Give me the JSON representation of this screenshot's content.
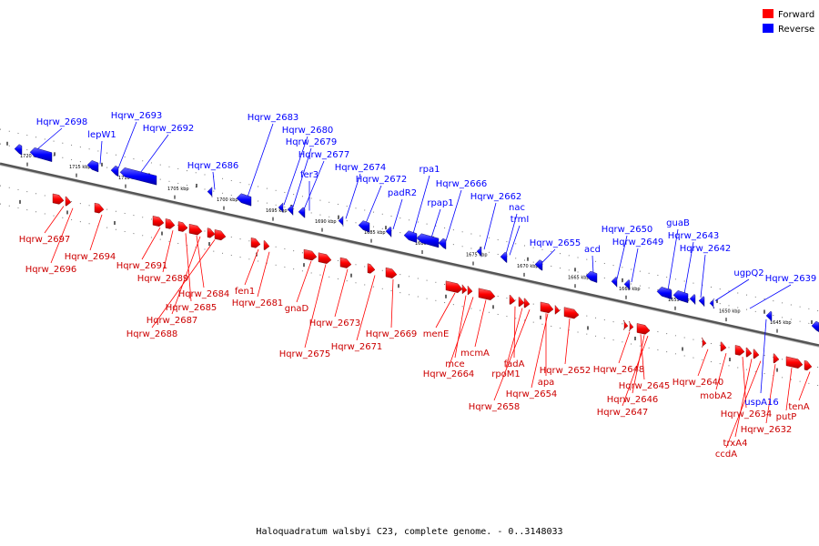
{
  "legend": [
    {
      "label": "Forward",
      "color": "#ff0000"
    },
    {
      "label": "Reverse",
      "color": "#0000ff"
    }
  ],
  "caption": "Haloquadratum walsbyi C23, complete genome. - 0..3148033",
  "ticks": [
    "1720 kbp",
    "1715 kbp",
    "1710 kbp",
    "1705 kbp",
    "1700 kbp",
    "1695 kbp",
    "1690 kbp",
    "1685 kbp",
    "1680 kbp",
    "1675 kbp",
    "1670 kbp",
    "1665 kbp",
    "1660 kbp",
    "1655 kbp",
    "1650 kbp",
    "1645 kbp"
  ],
  "reverse_genes": [
    "Hqrw_2698",
    "lepW1",
    "Hqrw_2693",
    "Hqrw_2692",
    "Hqrw_2686",
    "Hqrw_2683",
    "Hqrw_2680",
    "Hqrw_2679",
    "Hqrw_2677",
    "fer3",
    "Hqrw_2674",
    "Hqrw_2672",
    "padR2",
    "rpa1",
    "rpap1",
    "Hqrw_2666",
    "Hqrw_2662",
    "nac",
    "trmI",
    "Hqrw_2655",
    "acd",
    "Hqrw_2650",
    "Hqrw_2649",
    "guaB",
    "Hqrw_2643",
    "Hqrw_2642",
    "ugpQ2",
    "Hqrw_2639",
    "uspA16"
  ],
  "forward_genes": [
    "Hqrw_2697",
    "Hqrw_2696",
    "Hqrw_2694",
    "Hqrw_2691",
    "Hqrw_2689",
    "Hqrw_2684",
    "Hqrw_2685",
    "Hqrw_2687",
    "Hqrw_2688",
    "fen1",
    "Hqrw_2681",
    "gnaD",
    "Hqrw_2673",
    "Hqrw_2675",
    "Hqrw_2671",
    "Hqrw_2669",
    "menE",
    "mce",
    "mcmA",
    "Hqrw_2664",
    "fadA",
    "rpoM1",
    "apa",
    "Hqrw_2654",
    "Hqrw_2658",
    "Hqrw_2652",
    "Hqrw_2648",
    "Hqrw_2645",
    "Hqrw_2646",
    "Hqrw_2647",
    "Hqrw_2640",
    "mobA2",
    "Hqrw_2634",
    "trxA4",
    "ccdA",
    "Hqrw_2632",
    "putP",
    "tenA"
  ]
}
